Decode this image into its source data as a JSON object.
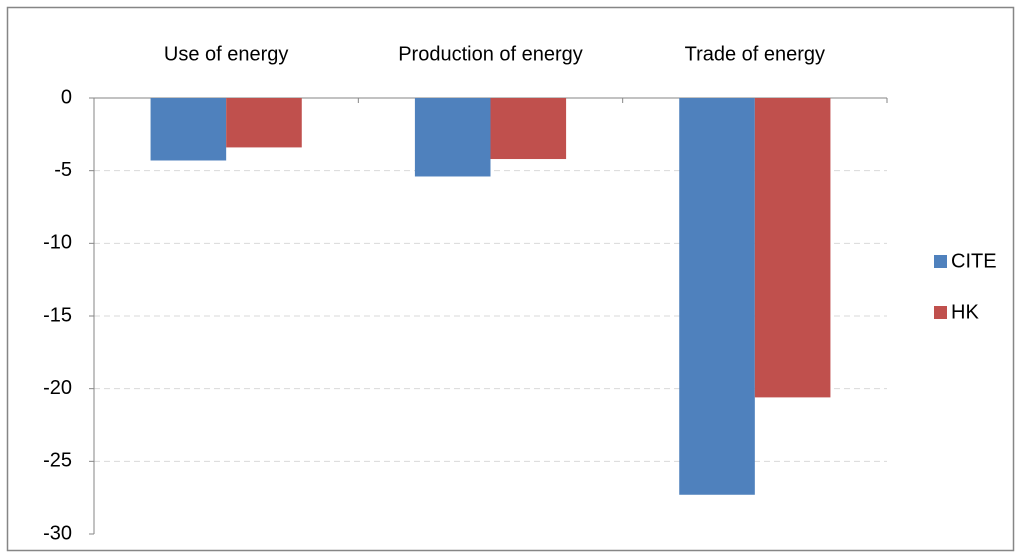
{
  "chart_data": {
    "type": "bar",
    "categories": [
      "Use of energy",
      "Production of energy",
      "Trade of energy"
    ],
    "series": [
      {
        "name": "CITE",
        "color": "#4f81bd",
        "values": [
          -4.3,
          -5.4,
          -27.3
        ]
      },
      {
        "name": "HK",
        "color": "#c0504d",
        "values": [
          -3.4,
          -4.2,
          -20.6
        ]
      }
    ],
    "ylim": [
      -30,
      0
    ],
    "yticks": [
      0,
      -5,
      -10,
      -15,
      -20,
      -25,
      -30
    ],
    "grid": true,
    "legend": "right",
    "category_axis": "top"
  }
}
